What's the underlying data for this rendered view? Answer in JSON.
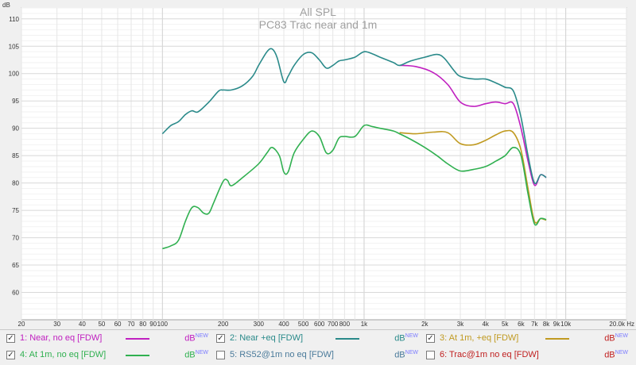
{
  "chart_data": {
    "type": "line",
    "title": "All SPL",
    "subtitle": "PC83 Trac near and 1m",
    "ylabel": "dB",
    "xlabel": "",
    "x_scale": "log",
    "xlim": [
      20,
      20000
    ],
    "ylim": [
      55,
      112
    ],
    "grid": true,
    "y_ticks": [
      60,
      65,
      70,
      75,
      80,
      85,
      90,
      95,
      100,
      105,
      110
    ],
    "y_tick_labels": [
      "60",
      "65",
      "70",
      "75",
      "80",
      "85",
      "90",
      "95",
      "100",
      "105",
      "110"
    ],
    "x_ticks": [
      20,
      30,
      40,
      50,
      60,
      70,
      80,
      90,
      100,
      200,
      300,
      400,
      500,
      600,
      700,
      800,
      1000,
      2000,
      3000,
      4000,
      5000,
      6000,
      7000,
      8000,
      9000,
      10000,
      20000
    ],
    "x_tick_labels": [
      "20",
      "30",
      "40",
      "50",
      "60",
      "70",
      "80",
      "90",
      "100",
      "200",
      "300",
      "400",
      "500",
      "600",
      "700",
      "800",
      "1k",
      "2k",
      "3k",
      "4k",
      "5k",
      "6k",
      "7k",
      "8k",
      "9k",
      "10k",
      "20.0k Hz"
    ],
    "series": [
      {
        "name": "1: Near, no eq [FDW]",
        "color": "#c020c0",
        "x": [
          1500,
          1800,
          2200,
          2600,
          3000,
          3500,
          4000,
          4500,
          5000,
          5500,
          6000,
          6500,
          7000,
          7500,
          8000
        ],
        "y": [
          101.5,
          101.3,
          100.2,
          98,
          94.8,
          94,
          94.5,
          94.8,
          94.5,
          94.5,
          90,
          84,
          79.6,
          81.5,
          81
        ]
      },
      {
        "name": "2: Near +eq [FDW]",
        "color": "#2a8a8a",
        "x": [
          100,
          110,
          120,
          130,
          140,
          150,
          170,
          190,
          200,
          220,
          250,
          280,
          300,
          330,
          350,
          370,
          400,
          420,
          450,
          500,
          550,
          600,
          650,
          700,
          750,
          800,
          900,
          1000,
          1100,
          1200,
          1400,
          1500,
          1700,
          2000,
          2300,
          2500,
          2800,
          3000,
          3500,
          4000,
          4500,
          5000,
          5500,
          6000,
          6500,
          7000,
          7500,
          8000
        ],
        "y": [
          89,
          90.5,
          91.2,
          92.5,
          93.2,
          93,
          94.8,
          96.8,
          97,
          97,
          97.8,
          99.5,
          101.5,
          104,
          104.5,
          103,
          98.5,
          99.5,
          101.5,
          103.5,
          103.8,
          102.5,
          101,
          101.5,
          102.3,
          102.5,
          103,
          104,
          103.6,
          103,
          102,
          101.5,
          102.3,
          103,
          103.5,
          102.8,
          100.5,
          99.5,
          99,
          99,
          98.3,
          97.5,
          96.8,
          92,
          85,
          80,
          81.5,
          81
        ]
      },
      {
        "name": "3: At 1m, +eq [FDW]",
        "color": "#c09a20",
        "x": [
          1500,
          1800,
          2200,
          2600,
          3000,
          3500,
          4000,
          4500,
          5000,
          5500,
          6000,
          6500,
          7000,
          7500,
          8000
        ],
        "y": [
          89.2,
          89,
          89.3,
          89.2,
          87.2,
          87,
          87.8,
          88.8,
          89.5,
          89.2,
          86,
          79,
          73,
          73.5,
          73.2
        ]
      },
      {
        "name": "4: At 1m, no eq [FDW]",
        "color": "#30b050",
        "x": [
          100,
          110,
          120,
          130,
          140,
          150,
          160,
          170,
          180,
          200,
          210,
          220,
          250,
          300,
          330,
          350,
          380,
          400,
          420,
          450,
          500,
          550,
          600,
          650,
          700,
          750,
          800,
          900,
          1000,
          1100,
          1200,
          1400,
          1500,
          1700,
          2000,
          2300,
          2600,
          3000,
          3500,
          4000,
          4500,
          5000,
          5500,
          6000,
          6500,
          7000,
          7500,
          8000
        ],
        "y": [
          68,
          68.5,
          69.5,
          73,
          75.5,
          75.5,
          74.5,
          74.5,
          76.5,
          80.3,
          80.5,
          79.5,
          81,
          83.5,
          85.5,
          86.5,
          85,
          82,
          82,
          85.5,
          88,
          89.5,
          88.5,
          85.5,
          86,
          88.2,
          88.5,
          88.5,
          90.5,
          90.3,
          90,
          89.5,
          89,
          88,
          86.5,
          85,
          83.5,
          82.2,
          82.5,
          83,
          84,
          85,
          86.5,
          85,
          78,
          72.5,
          73.5,
          73.3
        ]
      }
    ],
    "legend": [
      {
        "label": "1: Near, no eq [FDW]",
        "checked": true,
        "unit": "dB",
        "unit_sup": "NEW",
        "color": "#c020c0",
        "line_color": "#c020c0",
        "has_line": true
      },
      {
        "label": "2: Near +eq [FDW]",
        "checked": true,
        "unit": "dB",
        "unit_sup": "NEW",
        "color": "#2a8a8a",
        "line_color": "#2a8a8a",
        "has_line": true
      },
      {
        "label": "3: At 1m, +eq [FDW]",
        "checked": true,
        "unit": "dB",
        "unit_sup": "NEW",
        "color": "#c09a20",
        "line_color": "#c09a20",
        "has_line": true
      },
      {
        "label": "4: At 1m, no eq [FDW]",
        "checked": true,
        "unit": "dB",
        "unit_sup": "NEW",
        "color": "#30b050",
        "line_color": "#30b050",
        "has_line": true
      },
      {
        "label": "5: RS52@1m no eq [FDW]",
        "checked": false,
        "unit": "dB",
        "unit_sup": "NEW",
        "color": "#4a7a9a",
        "line_color": "#4a7a9a",
        "has_line": false
      },
      {
        "label": "6: Trac@1m no eq [FDW]",
        "checked": false,
        "unit": "dB",
        "unit_sup": "NEW",
        "color": "#c02020",
        "line_color": "#c02020",
        "has_line": false
      }
    ]
  }
}
